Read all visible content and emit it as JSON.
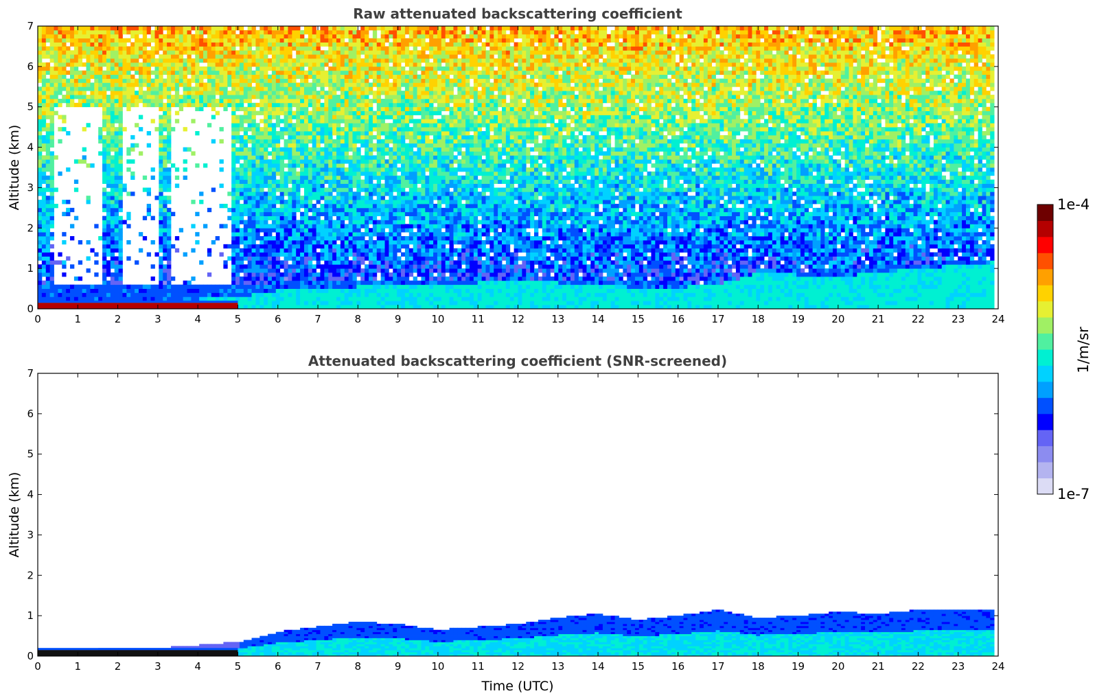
{
  "chart_data": [
    {
      "type": "heatmap",
      "title": "Raw attenuated backscattering coefficient",
      "xlabel": "",
      "ylabel": "Altitude (km)",
      "xlim": [
        0,
        24
      ],
      "ylim": [
        0,
        7
      ],
      "xticks": [
        "0",
        "1",
        "2",
        "3",
        "4",
        "5",
        "6",
        "7",
        "8",
        "9",
        "10",
        "11",
        "12",
        "13",
        "14",
        "15",
        "16",
        "17",
        "18",
        "19",
        "20",
        "21",
        "22",
        "23",
        "24"
      ],
      "yticks": [
        "0",
        "1",
        "2",
        "3",
        "4",
        "5",
        "6",
        "7"
      ],
      "data_end_hour": 23.8,
      "boundary_layer_top_km": [
        [
          0,
          0.15
        ],
        [
          3,
          0.2
        ],
        [
          5,
          0.3
        ],
        [
          6,
          0.45
        ],
        [
          8,
          0.55
        ],
        [
          10,
          0.6
        ],
        [
          12,
          0.7
        ],
        [
          14,
          0.6
        ],
        [
          15.5,
          0.5
        ],
        [
          17,
          0.6
        ],
        [
          18,
          0.9
        ],
        [
          20,
          0.8
        ],
        [
          22,
          1.0
        ],
        [
          23.8,
          1.15
        ]
      ],
      "aerosol_layer_top_km": [
        [
          5.5,
          0.6
        ],
        [
          7,
          0.7
        ],
        [
          9,
          0.7
        ],
        [
          11,
          0.65
        ],
        [
          13,
          0.7
        ],
        [
          14.5,
          0.7
        ],
        [
          16,
          0.65
        ],
        [
          17.5,
          0.5
        ],
        [
          18,
          0.9
        ],
        [
          19,
          0.85
        ],
        [
          21,
          1.1
        ],
        [
          23.8,
          1.2
        ]
      ],
      "masked_intervals_hours": [
        [
          0.4,
          1.6
        ],
        [
          2.1,
          3.0
        ],
        [
          3.3,
          4.8
        ]
      ]
    },
    {
      "type": "heatmap",
      "title": "Attenuated backscattering coefficient (SNR-screened)",
      "xlabel": "Time (UTC)",
      "ylabel": "Altitude (km)",
      "xlim": [
        0,
        24
      ],
      "ylim": [
        0,
        7
      ],
      "xticks": [
        "0",
        "1",
        "2",
        "3",
        "4",
        "5",
        "6",
        "7",
        "8",
        "9",
        "10",
        "11",
        "12",
        "13",
        "14",
        "15",
        "16",
        "17",
        "18",
        "19",
        "20",
        "21",
        "22",
        "23",
        "24"
      ],
      "yticks": [
        "0",
        "1",
        "2",
        "3",
        "4",
        "5",
        "6",
        "7"
      ],
      "data_end_hour": 23.8,
      "layer_top_km": [
        [
          0,
          0.15
        ],
        [
          3,
          0.2
        ],
        [
          5,
          0.35
        ],
        [
          6,
          0.6
        ],
        [
          8,
          0.85
        ],
        [
          9,
          0.8
        ],
        [
          10,
          0.65
        ],
        [
          12,
          0.8
        ],
        [
          13,
          0.95
        ],
        [
          14,
          1.05
        ],
        [
          15,
          0.9
        ],
        [
          16,
          1.0
        ],
        [
          17,
          1.15
        ],
        [
          18,
          0.95
        ],
        [
          19,
          1.0
        ],
        [
          20,
          1.1
        ],
        [
          21,
          1.05
        ],
        [
          22,
          1.15
        ],
        [
          23.8,
          1.15
        ]
      ]
    }
  ],
  "colorbar": {
    "label": "1/m/sr",
    "max_label": "1e-4",
    "min_label": "1e-7",
    "colors": [
      "#dcdcf5",
      "#b4b4f0",
      "#8c8cf0",
      "#6464f5",
      "#0000ff",
      "#0050ff",
      "#00a0ff",
      "#00d2ff",
      "#00f0d2",
      "#50f0a0",
      "#a0f064",
      "#e6f032",
      "#ffd200",
      "#ffa000",
      "#ff5000",
      "#ff0000",
      "#b40000",
      "#6e0000"
    ]
  }
}
